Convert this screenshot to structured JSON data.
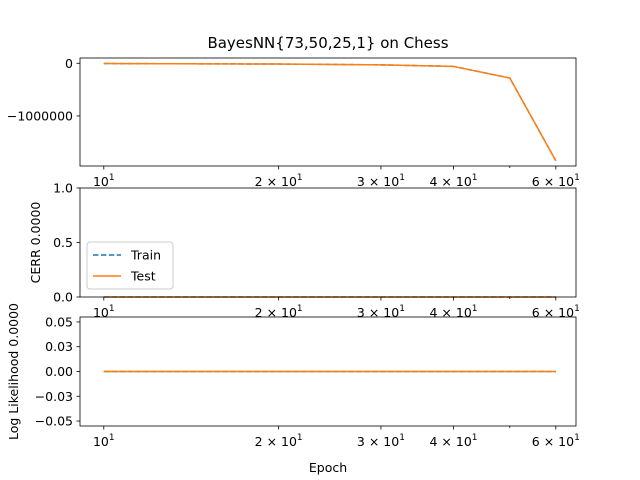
{
  "title": "BayesNN{73,50,25,1} on Chess",
  "xlabel": "Epoch",
  "colors": {
    "train": "#1f77b4",
    "test": "#ff7f0e"
  },
  "x_ticks": [
    {
      "value": 10,
      "base": "10",
      "exp": "1",
      "coef": ""
    },
    {
      "value": 20,
      "base": "10",
      "exp": "1",
      "coef": "2 × "
    },
    {
      "value": 30,
      "base": "10",
      "exp": "1",
      "coef": "3 × "
    },
    {
      "value": 40,
      "base": "10",
      "exp": "1",
      "coef": "4 × "
    },
    {
      "value": 60,
      "base": "10",
      "exp": "1",
      "coef": "6 × "
    }
  ],
  "x_minor_ticks": [
    50
  ],
  "legend": {
    "entries": [
      "Train",
      "Test"
    ],
    "placement": "left"
  },
  "chart_data": [
    {
      "type": "line",
      "title": "BayesNN{73,50,25,1} on Chess",
      "xlabel": "",
      "ylabel": "",
      "xscale": "log",
      "xlim": [
        9.1,
        65
      ],
      "ylim": [
        -1950000,
        100000
      ],
      "yticks": [
        {
          "value": 0,
          "label": "0"
        },
        {
          "value": -1000000,
          "label": "−1000000"
        }
      ],
      "x": [
        10,
        20,
        30,
        40,
        50,
        60
      ],
      "series": [
        {
          "name": "Train",
          "style": "dashed",
          "values": [
            -5000,
            -15000,
            -30000,
            -60000,
            -280000,
            -1850000
          ]
        },
        {
          "name": "Test",
          "style": "solid",
          "values": [
            -5000,
            -15000,
            -30000,
            -60000,
            -280000,
            -1850000
          ]
        }
      ]
    },
    {
      "type": "line",
      "xlabel": "",
      "ylabel": "CERR 0.0000",
      "xscale": "log",
      "xlim": [
        9.1,
        65
      ],
      "ylim": [
        0,
        1
      ],
      "yticks": [
        {
          "value": 0,
          "label": "0.0"
        },
        {
          "value": 0.5,
          "label": "0.5"
        },
        {
          "value": 1,
          "label": "1.0"
        }
      ],
      "x": [
        10,
        20,
        30,
        40,
        50,
        60
      ],
      "series": [
        {
          "name": "Train",
          "style": "dashed",
          "values": [
            0,
            0,
            0,
            0,
            0,
            0
          ]
        },
        {
          "name": "Test",
          "style": "solid",
          "values": [
            0,
            0,
            0,
            0,
            0,
            0
          ]
        }
      ]
    },
    {
      "type": "line",
      "xlabel": "Epoch",
      "ylabel": "Log Likelihood 0.0000",
      "xscale": "log",
      "xlim": [
        9.1,
        65
      ],
      "ylim": [
        -0.055,
        0.055
      ],
      "yticks": [
        {
          "value": 0.05,
          "label": "0.05"
        },
        {
          "value": 0.025,
          "label": "0.03"
        },
        {
          "value": 0,
          "label": "0.00"
        },
        {
          "value": -0.025,
          "label": "−0.03"
        },
        {
          "value": -0.05,
          "label": "−0.05"
        }
      ],
      "x": [
        10,
        20,
        30,
        40,
        50,
        60
      ],
      "series": [
        {
          "name": "Train",
          "style": "dashed",
          "values": [
            0,
            0,
            0,
            0,
            0,
            0
          ]
        },
        {
          "name": "Test",
          "style": "solid",
          "values": [
            0,
            0,
            0,
            0,
            0,
            0
          ]
        }
      ]
    }
  ]
}
